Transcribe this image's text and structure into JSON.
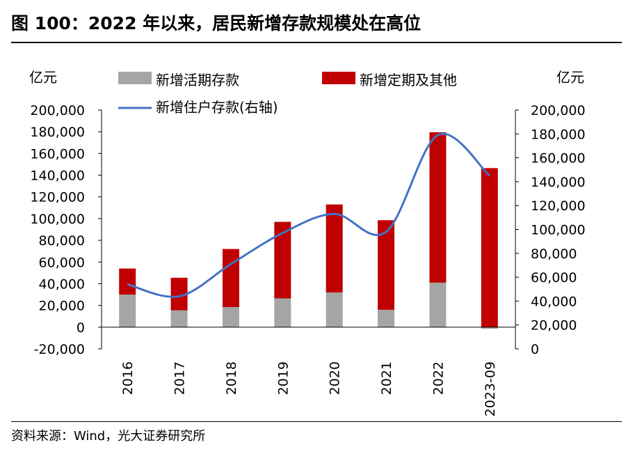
{
  "title": "图 100：2022 年以来，居民新增存款规模处在高位",
  "source": "资料来源：Wind，光大证券研究所",
  "chart_data": {
    "type": "bar",
    "stacked": true,
    "categories": [
      "2016",
      "2017",
      "2018",
      "2019",
      "2020",
      "2021",
      "2022",
      "2023-09"
    ],
    "left_unit": "亿元",
    "right_unit": "亿元",
    "left_ylim": [
      -20000,
      200000
    ],
    "right_ylim": [
      0,
      200000
    ],
    "left_ticks": [
      "200,000",
      "180,000",
      "160,000",
      "140,000",
      "120,000",
      "100,000",
      "80,000",
      "60,000",
      "40,000",
      "20,000",
      "0",
      "-20,000"
    ],
    "right_ticks": [
      "200,000",
      "180,000",
      "160,000",
      "140,000",
      "120,000",
      "100,000",
      "80,000",
      "60,000",
      "40,000",
      "20,000",
      "0"
    ],
    "series": [
      {
        "name": "新增活期存款",
        "color": "#a5a5a5",
        "axis": "left",
        "kind": "bar",
        "values": [
          30000,
          15500,
          18500,
          26500,
          32000,
          16000,
          41000,
          -1500
        ]
      },
      {
        "name": "新增定期及其他",
        "color": "#c00000",
        "axis": "left",
        "kind": "bar",
        "values": [
          24000,
          30000,
          53500,
          70500,
          81000,
          82500,
          138500,
          146500
        ]
      },
      {
        "name": "新增住户存款(右轴)",
        "color": "#4472c4",
        "axis": "right",
        "kind": "line",
        "values": [
          54000,
          44000,
          71000,
          97000,
          113000,
          98000,
          179000,
          145000
        ]
      }
    ],
    "legend": [
      "新增活期存款",
      "新增定期及其他",
      "新增住户存款(右轴)"
    ]
  }
}
